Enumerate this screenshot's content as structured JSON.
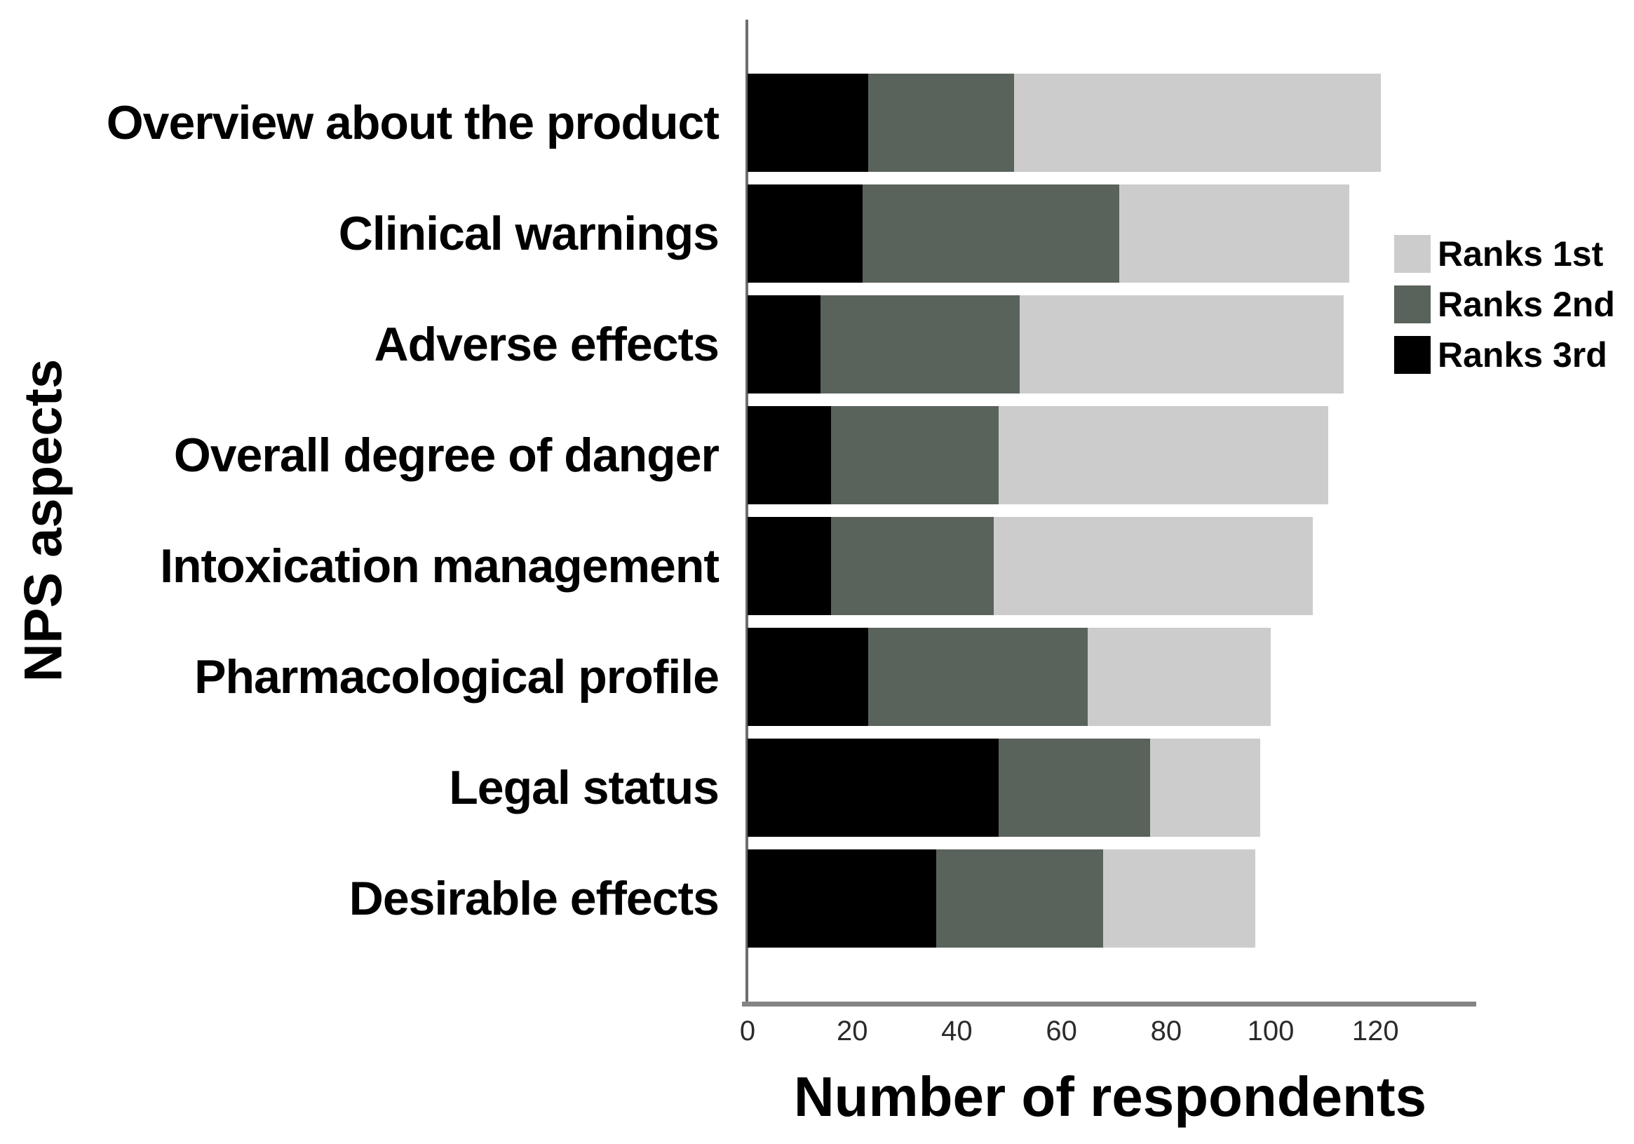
{
  "figure": {
    "background": "#ffffff"
  },
  "chart_data": {
    "type": "bar",
    "orientation": "horizontal",
    "stacked": true,
    "title": "",
    "xlabel": "Number of respondents",
    "ylabel": "NPS aspects",
    "categories": [
      "Overview about the product",
      "Clinical warnings",
      "Adverse effects",
      "Overall degree of danger",
      "Intoxication management",
      "Pharmacological profile",
      "Legal status",
      "Desirable effects"
    ],
    "series": [
      {
        "name": "Ranks 3rd",
        "color": "#000000",
        "values": [
          23,
          22,
          14,
          16,
          16,
          23,
          48,
          36
        ]
      },
      {
        "name": "Ranks 2nd",
        "color": "#5a625c",
        "values": [
          28,
          49,
          38,
          32,
          31,
          42,
          29,
          32
        ]
      },
      {
        "name": "Ranks 1st",
        "color": "#cccccc",
        "values": [
          70,
          44,
          62,
          63,
          61,
          35,
          21,
          29
        ]
      }
    ],
    "stack_order_note": "segments drawn from axis outward: Ranks 3rd (black), Ranks 2nd (dark grey-green), Ranks 1st (light grey)",
    "totals": [
      121,
      115,
      114,
      111,
      108,
      100,
      98,
      97
    ],
    "x_ticks": [
      0,
      20,
      40,
      60,
      80,
      100,
      120
    ],
    "xlim": [
      0,
      139
    ],
    "grid": false,
    "legend": {
      "position": "right-top",
      "items": [
        {
          "label": "Ranks 1st",
          "color": "#cccccc"
        },
        {
          "label": "Ranks 2nd",
          "color": "#5a625c"
        },
        {
          "label": "Ranks 3rd",
          "color": "#000000"
        }
      ]
    },
    "axis_colors": {
      "x_axis": "#848484",
      "y_axis": "#6d6d6d"
    }
  }
}
